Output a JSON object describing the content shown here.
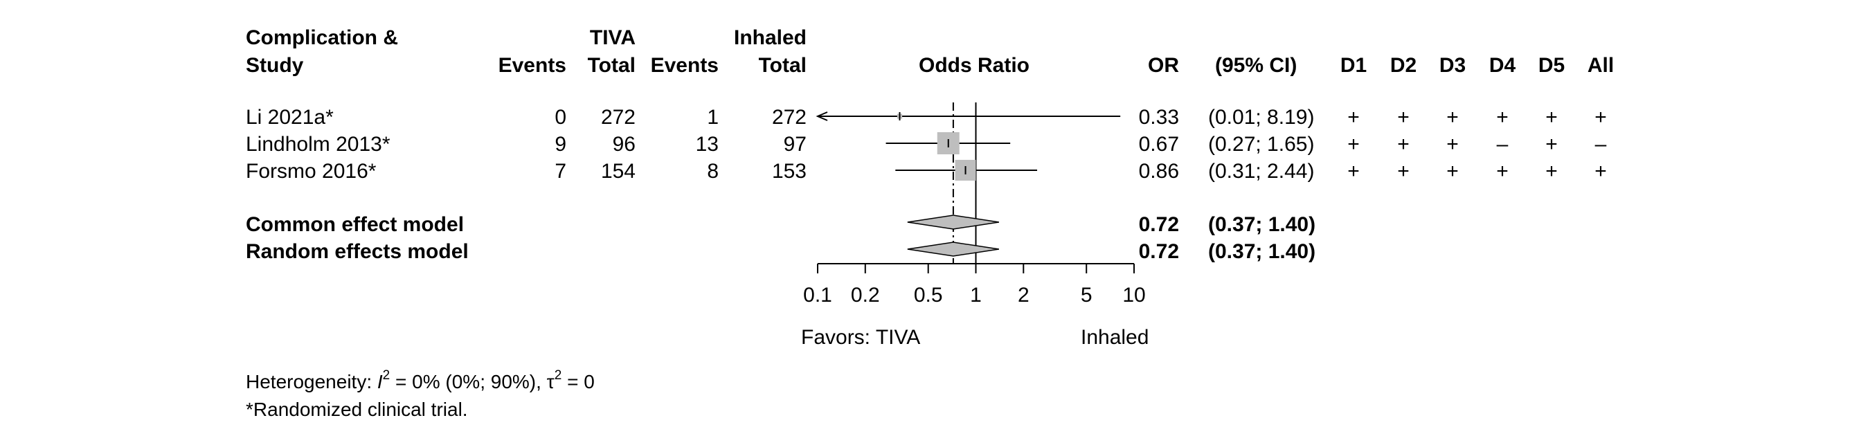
{
  "chart_data": {
    "type": "forest",
    "columns": {
      "study_head_1": "Complication &",
      "study_head_2": "Study",
      "group1": "TIVA",
      "group2": "Inhaled",
      "events": "Events",
      "total": "Total",
      "effect": "Odds Ratio",
      "or": "OR",
      "ci": "(95% CI)",
      "rob": [
        "D1",
        "D2",
        "D3",
        "D4",
        "D5",
        "All"
      ]
    },
    "studies": [
      {
        "name": "Li 2021a*",
        "e1": "0",
        "n1": "272",
        "e2": "1",
        "n2": "272",
        "or": 0.33,
        "lower": 0.01,
        "upper": 8.19,
        "or_text": "0.33",
        "ci_text": "(0.01; 8.19)",
        "weight": 0.05,
        "rob": [
          "+",
          "+",
          "+",
          "+",
          "+",
          "+"
        ]
      },
      {
        "name": "Lindholm 2013*",
        "e1": "9",
        "n1": "96",
        "e2": "13",
        "n2": "97",
        "or": 0.67,
        "lower": 0.27,
        "upper": 1.65,
        "or_text": "0.67",
        "ci_text": "(0.27; 1.65)",
        "weight": 1.0,
        "rob": [
          "+",
          "+",
          "+",
          "–",
          "+",
          "–"
        ]
      },
      {
        "name": "Forsmo 2016*",
        "e1": "7",
        "n1": "154",
        "e2": "8",
        "n2": "153",
        "or": 0.86,
        "lower": 0.31,
        "upper": 2.44,
        "or_text": "0.86",
        "ci_text": "(0.31; 2.44)",
        "weight": 0.88,
        "rob": [
          "+",
          "+",
          "+",
          "+",
          "+",
          "+"
        ]
      }
    ],
    "models": [
      {
        "name": "Common effect model",
        "or": 0.72,
        "lower": 0.37,
        "upper": 1.4,
        "or_text": "0.72",
        "ci_text": "(0.37; 1.40)"
      },
      {
        "name": "Random effects model",
        "or": 0.72,
        "lower": 0.37,
        "upper": 1.4,
        "or_text": "0.72",
        "ci_text": "(0.37; 1.40)"
      }
    ],
    "x_axis": {
      "scale": "log",
      "range": [
        0.1,
        10
      ],
      "ticks": [
        0.1,
        0.2,
        0.5,
        1,
        2,
        5,
        10
      ],
      "tick_labels": [
        "0.1",
        "0.2",
        "0.5",
        "1",
        "2",
        "5",
        "10"
      ],
      "null_value": 1,
      "pooled_ref": 0.72,
      "label_left": "Favors: TIVA",
      "label_right": "Inhaled"
    },
    "footnotes": {
      "het_prefix": "Heterogeneity: ",
      "het_i": "I",
      "het_i_exp": "2",
      "het_mid": " = 0% (0%; 90%), τ",
      "het_tau_exp": "2",
      "het_end": " = 0",
      "trial_note": "*Randomized clinical trial."
    },
    "colors": {
      "square": "#bebebe",
      "diamond": "#bebebe",
      "line": "#000000"
    }
  }
}
